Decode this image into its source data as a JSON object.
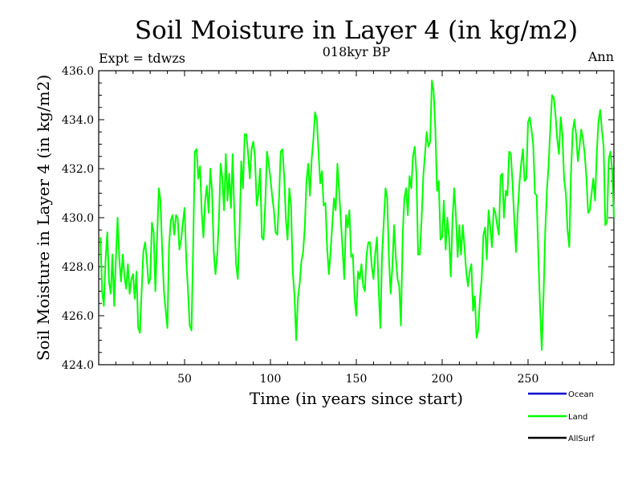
{
  "chart_data": {
    "type": "line",
    "title": "Soil Moisture in Layer 4 (in kg/m2)",
    "subtitle": "018kyr BP",
    "expt_label": "Expt = tdwzs",
    "period_label": "Ann",
    "xlabel": "Time (in years since start)",
    "ylabel": "Soil Moisture in Layer 4 (in kg/m2)",
    "xlim": [
      0,
      300
    ],
    "ylim": [
      424,
      436
    ],
    "xticks": [
      50,
      100,
      150,
      200,
      250
    ],
    "xtick_labels": [
      "50",
      "100",
      "150",
      "200",
      "250"
    ],
    "yticks": [
      424,
      426,
      428,
      430,
      432,
      434,
      436
    ],
    "ytick_labels": [
      "424.0",
      "426.0",
      "428.0",
      "430.0",
      "432.0",
      "434.0",
      "436.0"
    ],
    "legend": [
      {
        "name": "Ocean",
        "color": "#0000cc"
      },
      {
        "name": "Land",
        "color": "#00ff00"
      },
      {
        "name": "AllSurf",
        "color": "#000000"
      }
    ],
    "series": [
      {
        "name": "Land",
        "color": "#00ff00",
        "x": [
          1,
          2,
          3,
          4,
          5,
          6,
          7,
          8,
          9,
          10,
          11,
          12,
          13,
          14,
          15,
          16,
          17,
          18,
          19,
          20,
          21,
          22,
          23,
          24,
          25,
          26,
          27,
          28,
          29,
          30,
          31,
          32,
          33,
          34,
          35,
          36,
          37,
          38,
          39,
          40,
          41,
          42,
          43,
          44,
          45,
          46,
          47,
          48,
          49,
          50,
          51,
          52,
          53,
          54,
          55,
          56,
          57,
          58,
          59,
          60,
          61,
          62,
          63,
          64,
          65,
          66,
          67,
          68,
          69,
          70,
          71,
          72,
          73,
          74,
          75,
          76,
          77,
          78,
          79,
          80,
          81,
          82,
          83,
          84,
          85,
          86,
          87,
          88,
          89,
          90,
          91,
          92,
          93,
          94,
          95,
          96,
          97,
          98,
          99,
          100,
          101,
          102,
          103,
          104,
          105,
          106,
          107,
          108,
          109,
          110,
          111,
          112,
          113,
          114,
          115,
          116,
          117,
          118,
          119,
          120,
          121,
          122,
          123,
          124,
          125,
          126,
          127,
          128,
          129,
          130,
          131,
          132,
          133,
          134,
          135,
          136,
          137,
          138,
          139,
          140,
          141,
          142,
          143,
          144,
          145,
          146,
          147,
          148,
          149,
          150,
          151,
          152,
          153,
          154,
          155,
          156,
          157,
          158,
          159,
          160,
          161,
          162,
          163,
          164,
          165,
          166,
          167,
          168,
          169,
          170,
          171,
          172,
          173,
          174,
          175,
          176,
          177,
          178,
          179,
          180,
          181,
          182,
          183,
          184,
          185,
          186,
          187,
          188,
          189,
          190,
          191,
          192,
          193,
          194,
          195,
          196,
          197,
          198,
          199,
          200,
          201,
          202,
          203,
          204,
          205,
          206,
          207,
          208,
          209,
          210,
          211,
          212,
          213,
          214,
          215,
          216,
          217,
          218,
          219,
          220,
          221,
          222,
          223,
          224,
          225,
          226,
          227,
          228,
          229,
          230,
          231,
          232,
          233,
          234,
          235,
          236,
          237,
          238,
          239,
          240,
          241,
          242,
          243,
          244,
          245,
          246,
          247,
          248,
          249,
          250,
          251,
          252,
          253,
          254,
          255,
          256,
          257,
          258,
          259,
          260,
          261,
          262,
          263,
          264,
          265,
          266,
          267,
          268,
          269,
          270,
          271,
          272,
          273,
          274,
          275,
          276,
          277,
          278,
          279,
          280,
          281,
          282,
          283,
          284,
          285,
          286,
          287,
          288,
          289,
          290,
          291,
          292,
          293,
          294,
          295,
          296,
          297,
          298,
          299,
          300
        ],
        "y": [
          429.2,
          427.0,
          426.4,
          428.3,
          429.4,
          427.4,
          426.9,
          428.5,
          426.4,
          428.3,
          430.0,
          428.3,
          427.4,
          428.5,
          427.6,
          427.1,
          428.1,
          426.9,
          427.5,
          427.7,
          426.7,
          427.8,
          425.5,
          425.3,
          427.0,
          428.6,
          429.0,
          428.3,
          427.3,
          427.5,
          429.8,
          429.4,
          427.0,
          429.2,
          431.2,
          430.7,
          428.6,
          427.0,
          426.2,
          425.5,
          428.9,
          429.9,
          430.1,
          429.3,
          430.1,
          430.0,
          428.7,
          429.1,
          429.8,
          430.4,
          428.3,
          427.0,
          425.6,
          425.4,
          428.8,
          432.7,
          432.8,
          431.6,
          432.1,
          430.2,
          429.2,
          430.7,
          431.3,
          430.2,
          432.0,
          431.1,
          428.6,
          427.7,
          428.5,
          429.9,
          432.2,
          431.6,
          430.3,
          432.6,
          430.7,
          431.8,
          430.4,
          432.6,
          430.0,
          428.1,
          427.5,
          429.4,
          432.3,
          431.2,
          433.4,
          433.4,
          432.6,
          431.6,
          432.8,
          433.1,
          432.5,
          430.5,
          431.0,
          432.0,
          429.2,
          429.1,
          430.6,
          432.7,
          432.2,
          431.6,
          430.9,
          430.3,
          429.4,
          429.3,
          430.8,
          432.7,
          432.8,
          431.7,
          429.9,
          429.1,
          431.2,
          430.5,
          427.8,
          426.8,
          425.0,
          426.7,
          427.3,
          428.2,
          428.6,
          429.6,
          431.5,
          432.2,
          430.9,
          432.4,
          433.2,
          434.3,
          434.0,
          432.7,
          431.4,
          431.9,
          430.5,
          430.6,
          428.8,
          427.7,
          428.6,
          429.7,
          430.8,
          430.3,
          432.2,
          431.1,
          429.9,
          428.7,
          427.5,
          430.1,
          429.6,
          430.3,
          428.4,
          428.5,
          426.7,
          426.0,
          427.8,
          427.5,
          428.1,
          427.2,
          427.0,
          428.5,
          429.0,
          429.0,
          428.0,
          427.5,
          428.5,
          429.2,
          427.1,
          425.5,
          428.5,
          429.8,
          431.2,
          430.8,
          428.3,
          426.9,
          428.0,
          429.7,
          428.4,
          427.5,
          427.2,
          425.6,
          429.3,
          430.8,
          431.2,
          430.1,
          431.7,
          431.2,
          432.5,
          432.9,
          431.8,
          428.5,
          428.5,
          429.9,
          431.7,
          432.6,
          433.5,
          432.9,
          433.1,
          435.6,
          435.2,
          433.7,
          431.1,
          431.5,
          429.1,
          429.2,
          430.7,
          428.7,
          430.0,
          429.2,
          427.6,
          429.9,
          431.2,
          430.1,
          428.4,
          429.7,
          428.5,
          429.7,
          428.8,
          427.8,
          427.2,
          427.8,
          428.1,
          426.2,
          426.8,
          425.1,
          425.4,
          426.7,
          427.5,
          429.3,
          429.6,
          428.3,
          430.3,
          429.6,
          428.8,
          430.4,
          430.2,
          429.7,
          429.3,
          431.7,
          431.8,
          430.0,
          431.1,
          430.9,
          432.7,
          432.6,
          431.4,
          429.9,
          428.6,
          430.3,
          431.4,
          432.2,
          432.8,
          431.5,
          431.6,
          433.9,
          434.1,
          433.6,
          433.0,
          431.0,
          430.9,
          428.5,
          426.3,
          424.6,
          426.8,
          429.4,
          431.1,
          432.2,
          433.7,
          435.0,
          434.9,
          434.2,
          433.2,
          432.6,
          434.1,
          433.4,
          431.6,
          431.0,
          429.5,
          428.8,
          431.8,
          433.5,
          434.0,
          433.4,
          432.3,
          432.9,
          433.6,
          433.2,
          432.6,
          431.6,
          430.2,
          430.3,
          431.0,
          431.6,
          430.7,
          432.6,
          433.9,
          434.4,
          433.6,
          432.9,
          429.7,
          429.8,
          432.4,
          432.7,
          431.9,
          430.0
        ]
      }
    ]
  }
}
